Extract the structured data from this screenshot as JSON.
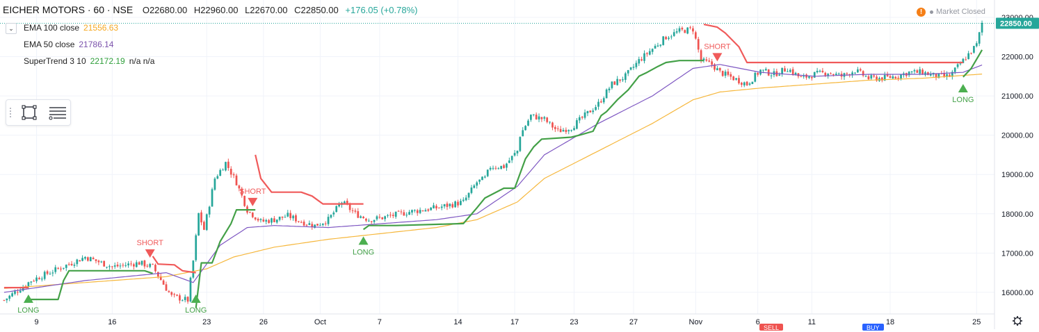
{
  "header": {
    "symbol": "EICHER MOTORS · 60 · NSE",
    "open": "O22680.00",
    "high": "H22960.00",
    "low": "L22670.00",
    "close": "C22850.00",
    "change": "+176.05 (+0.78%)"
  },
  "legend": [
    {
      "label": "EMA 100 close",
      "value": "21556.63",
      "color": "#f6a821"
    },
    {
      "label": "EMA 50 close",
      "value": "21786.14",
      "color": "#7b52ab"
    },
    {
      "label": "SuperTrend 3 10",
      "value": "22172.19",
      "extra": "n/a n/a",
      "color": "#2e9e3a"
    }
  ],
  "status": {
    "market": "Market Closed",
    "warn_icon": "!"
  },
  "price_tag": "22850.00",
  "bottom_buttons": [
    {
      "label": "SELL",
      "color": "#ef5350"
    },
    {
      "label": "BUY",
      "color": "#2962ff"
    }
  ],
  "colors": {
    "up": "#26a69a",
    "down": "#ef5350",
    "supertrend_up": "#43a047",
    "supertrend_down": "#f05a5a",
    "ema100": "#f6b73c",
    "ema50": "#7e57c2"
  },
  "chart_data": {
    "type": "candlestick",
    "y_ticks": [
      "23000.00",
      "22000.00",
      "21000.00",
      "20000.00",
      "19000.00",
      "18000.00",
      "17000.00",
      "16000.00"
    ],
    "y_tick_values": [
      23000,
      22000,
      21000,
      20000,
      19000,
      18000,
      17000,
      16000
    ],
    "ylim": [
      15450,
      23300
    ],
    "x_ticks": [
      "9",
      "16",
      "23",
      "26",
      "Oct",
      "7",
      "14",
      "17",
      "23",
      "27",
      "Nov",
      "6",
      "11",
      "18",
      "25"
    ],
    "x_tick_index": [
      12,
      40,
      75,
      96,
      117,
      139,
      168,
      189,
      211,
      233,
      256,
      279,
      299,
      328,
      360
    ],
    "bar_count": 363,
    "anchors": {
      "index": [
        0,
        10,
        20,
        30,
        40,
        50,
        55,
        60,
        62,
        68,
        70,
        72,
        74,
        78,
        82,
        86,
        90,
        95,
        100,
        105,
        110,
        115,
        120,
        125,
        130,
        135,
        140,
        150,
        160,
        170,
        175,
        178,
        180,
        185,
        190,
        191,
        195,
        200,
        205,
        210,
        215,
        220,
        225,
        230,
        235,
        240,
        245,
        250,
        255,
        258,
        262,
        265,
        270,
        275,
        280,
        285,
        290,
        295,
        300,
        305,
        310,
        315,
        320,
        325,
        330,
        335,
        340,
        345,
        350,
        355,
        360,
        362
      ],
      "price": [
        15800,
        16300,
        16600,
        16900,
        16650,
        16750,
        16650,
        16100,
        15900,
        15800,
        16800,
        18000,
        17600,
        18900,
        19300,
        18800,
        18100,
        17800,
        17850,
        17950,
        17800,
        17700,
        17850,
        18300,
        18000,
        17850,
        17900,
        18050,
        18150,
        18300,
        18800,
        18900,
        19200,
        19200,
        19600,
        20000,
        20500,
        20400,
        20100,
        20200,
        20500,
        20800,
        21300,
        21500,
        21900,
        22200,
        22500,
        22650,
        22700,
        21900,
        21800,
        21600,
        21450,
        21300,
        21650,
        21550,
        21700,
        21450,
        21550,
        21600,
        21500,
        21650,
        21450,
        21450,
        21500,
        21600,
        21600,
        21500,
        21500,
        21900,
        22300,
        22850
      ]
    },
    "ema100_anchor": {
      "index": [
        0,
        30,
        60,
        75,
        85,
        100,
        120,
        140,
        160,
        175,
        190,
        200,
        220,
        240,
        255,
        265,
        280,
        300,
        320,
        340,
        362
      ],
      "price": [
        16100,
        16250,
        16400,
        16600,
        16900,
        17150,
        17350,
        17500,
        17650,
        17850,
        18300,
        18900,
        19600,
        20300,
        20900,
        21100,
        21200,
        21300,
        21400,
        21450,
        21556
      ]
    },
    "ema50_anchor": {
      "index": [
        0,
        30,
        60,
        70,
        80,
        90,
        100,
        120,
        140,
        160,
        175,
        190,
        200,
        220,
        240,
        255,
        265,
        280,
        300,
        320,
        340,
        355,
        362
      ],
      "price": [
        16000,
        16300,
        16500,
        16250,
        17200,
        17650,
        17700,
        17650,
        17750,
        17850,
        18000,
        18700,
        19500,
        20300,
        21000,
        21700,
        21800,
        21600,
        21500,
        21550,
        21550,
        21600,
        21786
      ]
    },
    "supertrend_segments": [
      {
        "dir": "down",
        "points": [
          [
            0,
            16120
          ],
          [
            9,
            16120
          ]
        ]
      },
      {
        "dir": "up",
        "points": [
          [
            9,
            15820
          ],
          [
            20,
            15820
          ],
          [
            22,
            16300
          ],
          [
            24,
            16550
          ],
          [
            40,
            16550
          ],
          [
            52,
            16550
          ],
          [
            55,
            16480
          ]
        ]
      },
      {
        "dir": "down",
        "points": [
          [
            55,
            16920
          ],
          [
            57,
            16720
          ],
          [
            63,
            16700
          ],
          [
            66,
            16550
          ],
          [
            71,
            16500
          ]
        ]
      },
      {
        "dir": "up",
        "points": [
          [
            71,
            15600
          ],
          [
            73,
            16750
          ],
          [
            77,
            16750
          ],
          [
            80,
            17300
          ],
          [
            84,
            17750
          ],
          [
            86,
            18100
          ],
          [
            93,
            18100
          ]
        ]
      },
      {
        "dir": "down",
        "points": [
          [
            93,
            19500
          ],
          [
            95,
            18900
          ],
          [
            99,
            18550
          ],
          [
            110,
            18550
          ],
          [
            114,
            18450
          ],
          [
            118,
            18250
          ],
          [
            133,
            18250
          ]
        ]
      },
      {
        "dir": "up",
        "points": [
          [
            133,
            17600
          ],
          [
            135,
            17700
          ],
          [
            145,
            17700
          ],
          [
            170,
            17750
          ],
          [
            175,
            18150
          ],
          [
            178,
            18400
          ],
          [
            185,
            18650
          ],
          [
            189,
            18650
          ],
          [
            193,
            19400
          ],
          [
            196,
            19700
          ],
          [
            199,
            19900
          ],
          [
            210,
            19950
          ],
          [
            213,
            20000
          ],
          [
            218,
            20100
          ],
          [
            221,
            20500
          ],
          [
            223,
            20600
          ],
          [
            227,
            20900
          ],
          [
            231,
            21150
          ],
          [
            235,
            21500
          ],
          [
            238,
            21600
          ],
          [
            242,
            21750
          ],
          [
            245,
            21850
          ],
          [
            250,
            21900
          ],
          [
            259,
            21900
          ]
        ]
      },
      {
        "dir": "down",
        "points": [
          [
            259,
            22820
          ],
          [
            264,
            22750
          ],
          [
            267,
            22600
          ],
          [
            272,
            22250
          ],
          [
            275,
            21850
          ],
          [
            282,
            21850
          ],
          [
            300,
            21850
          ],
          [
            330,
            21850
          ],
          [
            345,
            21850
          ],
          [
            355,
            21850
          ]
        ]
      },
      {
        "dir": "up",
        "points": [
          [
            355,
            21480
          ],
          [
            358,
            21700
          ],
          [
            361,
            22050
          ],
          [
            362,
            22172
          ]
        ]
      }
    ],
    "signals": [
      {
        "type": "LONG",
        "index": 9
      },
      {
        "type": "SHORT",
        "index": 54
      },
      {
        "type": "LONG",
        "index": 71
      },
      {
        "type": "SHORT",
        "index": 92
      },
      {
        "type": "LONG",
        "index": 133
      },
      {
        "type": "SHORT",
        "index": 264
      },
      {
        "type": "LONG",
        "index": 355
      }
    ]
  }
}
